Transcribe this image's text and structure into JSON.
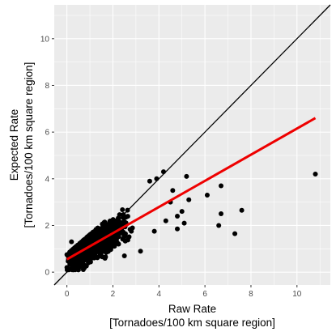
{
  "chart_data": {
    "type": "scatter",
    "xlabel": [
      "Raw Rate",
      "[Tornadoes/100 km square region]"
    ],
    "ylabel": [
      "Expected Rate",
      "[Tornadoes/100 km square region]"
    ],
    "xlim": [
      -0.55,
      11.45
    ],
    "ylim": [
      -0.55,
      11.45
    ],
    "x_ticks": [
      0,
      2,
      4,
      6,
      8,
      10
    ],
    "y_ticks": [
      0,
      2,
      4,
      6,
      8,
      10
    ],
    "grid": true,
    "panel_background": "#ebebeb",
    "grid_color": "#ffffff",
    "point_color": "#000000",
    "identity_line": {
      "slope": 1,
      "intercept": 0,
      "color": "#000000"
    },
    "fit_line": {
      "x": [
        0,
        10.8
      ],
      "y": [
        0.55,
        6.6
      ],
      "color": "#ee0000"
    },
    "outliers": [
      {
        "x": 10.8,
        "y": 4.2
      },
      {
        "x": 7.6,
        "y": 2.65
      },
      {
        "x": 7.3,
        "y": 1.65
      },
      {
        "x": 6.7,
        "y": 3.7
      },
      {
        "x": 6.7,
        "y": 2.5
      },
      {
        "x": 6.6,
        "y": 2.0
      },
      {
        "x": 6.1,
        "y": 3.3
      },
      {
        "x": 5.3,
        "y": 3.1
      },
      {
        "x": 5.0,
        "y": 2.6
      },
      {
        "x": 5.1,
        "y": 2.1
      },
      {
        "x": 4.8,
        "y": 1.85
      },
      {
        "x": 5.2,
        "y": 4.1
      },
      {
        "x": 4.2,
        "y": 4.3
      },
      {
        "x": 4.5,
        "y": 3.0
      },
      {
        "x": 4.3,
        "y": 2.2
      },
      {
        "x": 3.9,
        "y": 4.0
      },
      {
        "x": 3.6,
        "y": 3.9
      },
      {
        "x": 4.6,
        "y": 3.5
      },
      {
        "x": 3.8,
        "y": 1.75
      },
      {
        "x": 4.8,
        "y": 2.4
      },
      {
        "x": 3.2,
        "y": 0.9
      },
      {
        "x": 2.5,
        "y": 0.7
      },
      {
        "x": 0.0,
        "y": 0.2
      },
      {
        "x": 0.05,
        "y": 0.15
      },
      {
        "x": 0.2,
        "y": 1.3
      },
      {
        "x": 0.0,
        "y": 0.75
      }
    ],
    "cluster": {
      "count": 900,
      "x_range": [
        0,
        4.2
      ],
      "mean_x": 1.6,
      "relationship": "y ≈ 0.55 + 0.56x",
      "spread_sd": 0.45
    }
  }
}
